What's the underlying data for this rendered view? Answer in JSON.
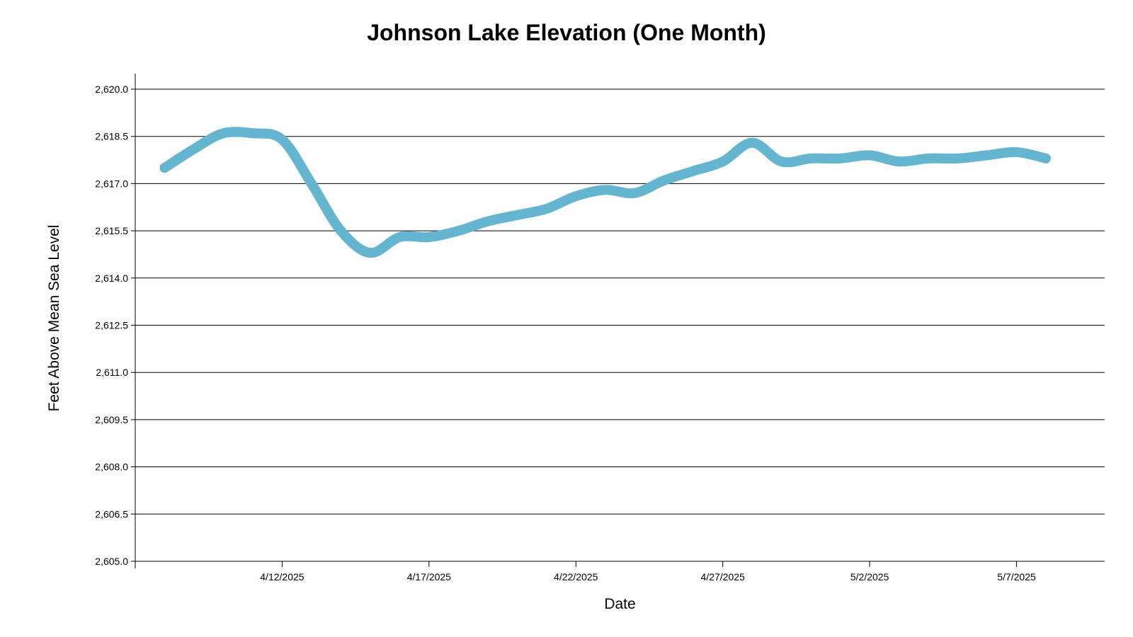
{
  "chart_data": {
    "type": "line",
    "title": "Johnson Lake Elevation (One Month)",
    "xlabel": "Date",
    "ylabel": "Feet Above Mean Sea Level",
    "ylim": [
      2605.0,
      2620.0
    ],
    "xlim": [
      "2025-04-07",
      "2025-05-10"
    ],
    "yticks": [
      2605.0,
      2606.5,
      2608.0,
      2609.5,
      2611.0,
      2612.5,
      2614.0,
      2615.5,
      2617.0,
      2618.5,
      2620.0
    ],
    "ytick_labels": [
      "2,605.0",
      "2,606.5",
      "2,608.0",
      "2,609.5",
      "2,611.0",
      "2,612.5",
      "2,614.0",
      "2,615.5",
      "2,617.0",
      "2,618.5",
      "2,620.0"
    ],
    "xticks": [
      "2025-04-12",
      "2025-04-17",
      "2025-04-22",
      "2025-04-27",
      "2025-05-02",
      "2025-05-07"
    ],
    "xtick_labels": [
      "4/12/2025",
      "4/17/2025",
      "4/22/2025",
      "4/27/2025",
      "5/2/2025",
      "5/7/2025"
    ],
    "grid": true,
    "series": [
      {
        "color": "#63b5d0",
        "x": [
          "2025-04-08",
          "2025-04-09",
          "2025-04-10",
          "2025-04-11",
          "2025-04-12",
          "2025-04-13",
          "2025-04-14",
          "2025-04-15",
          "2025-04-16",
          "2025-04-17",
          "2025-04-18",
          "2025-04-19",
          "2025-04-20",
          "2025-04-21",
          "2025-04-22",
          "2025-04-23",
          "2025-04-24",
          "2025-04-25",
          "2025-04-26",
          "2025-04-27",
          "2025-04-28",
          "2025-04-29",
          "2025-04-30",
          "2025-05-01",
          "2025-05-02",
          "2025-05-03",
          "2025-05-04",
          "2025-05-05",
          "2025-05-06",
          "2025-05-07",
          "2025-05-08"
        ],
        "y": [
          2617.5,
          2618.1,
          2618.6,
          2618.6,
          2618.4,
          2617.0,
          2615.5,
          2614.8,
          2615.3,
          2615.3,
          2615.5,
          2615.8,
          2616.0,
          2616.2,
          2616.6,
          2616.8,
          2616.7,
          2617.1,
          2617.4,
          2617.7,
          2618.3,
          2617.7,
          2617.8,
          2617.8,
          2617.9,
          2617.7,
          2617.8,
          2617.8,
          2617.9,
          2618.0,
          2617.8
        ]
      }
    ]
  }
}
